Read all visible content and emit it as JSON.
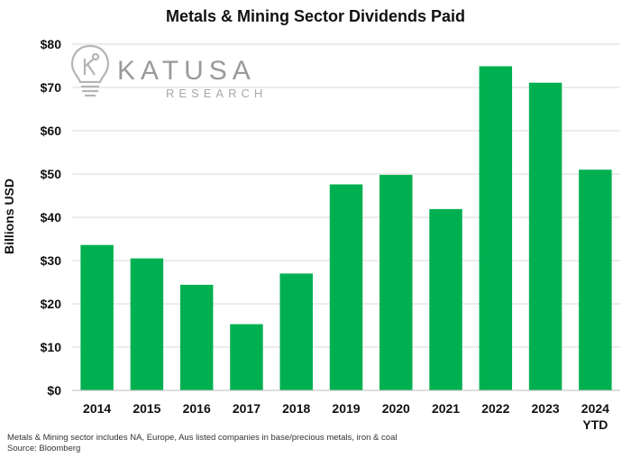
{
  "chart_data": {
    "type": "bar",
    "title": "Metals & Mining Sector Dividends Paid",
    "ylabel": "Billions USD",
    "xlabel": "",
    "categories": [
      "2014",
      "2015",
      "2016",
      "2017",
      "2018",
      "2019",
      "2020",
      "2021",
      "2022",
      "2023",
      "2024"
    ],
    "category_sublabels": [
      "",
      "",
      "",
      "",
      "",
      "",
      "",
      "",
      "",
      "",
      "YTD"
    ],
    "values": [
      33.6,
      30.5,
      24.4,
      15.3,
      27.0,
      47.6,
      49.8,
      41.9,
      74.9,
      71.1,
      51.0
    ],
    "ylim": [
      0,
      80
    ],
    "yticks": [
      0,
      10,
      20,
      30,
      40,
      50,
      60,
      70,
      80
    ],
    "ytick_labels": [
      "$0",
      "$10",
      "$20",
      "$30",
      "$40",
      "$50",
      "$60",
      "$70",
      "$80"
    ],
    "grid": true,
    "bar_color": "#00b050",
    "gridline_color": "#d9d9d9"
  },
  "logo": {
    "main": "KATUSA",
    "sub": "RESEARCH"
  },
  "footnotes": {
    "note": "Metals & Mining sector includes NA, Europe, Aus listed companies in base/precious metals, iron & coal",
    "source": "Source: Bloomberg"
  }
}
